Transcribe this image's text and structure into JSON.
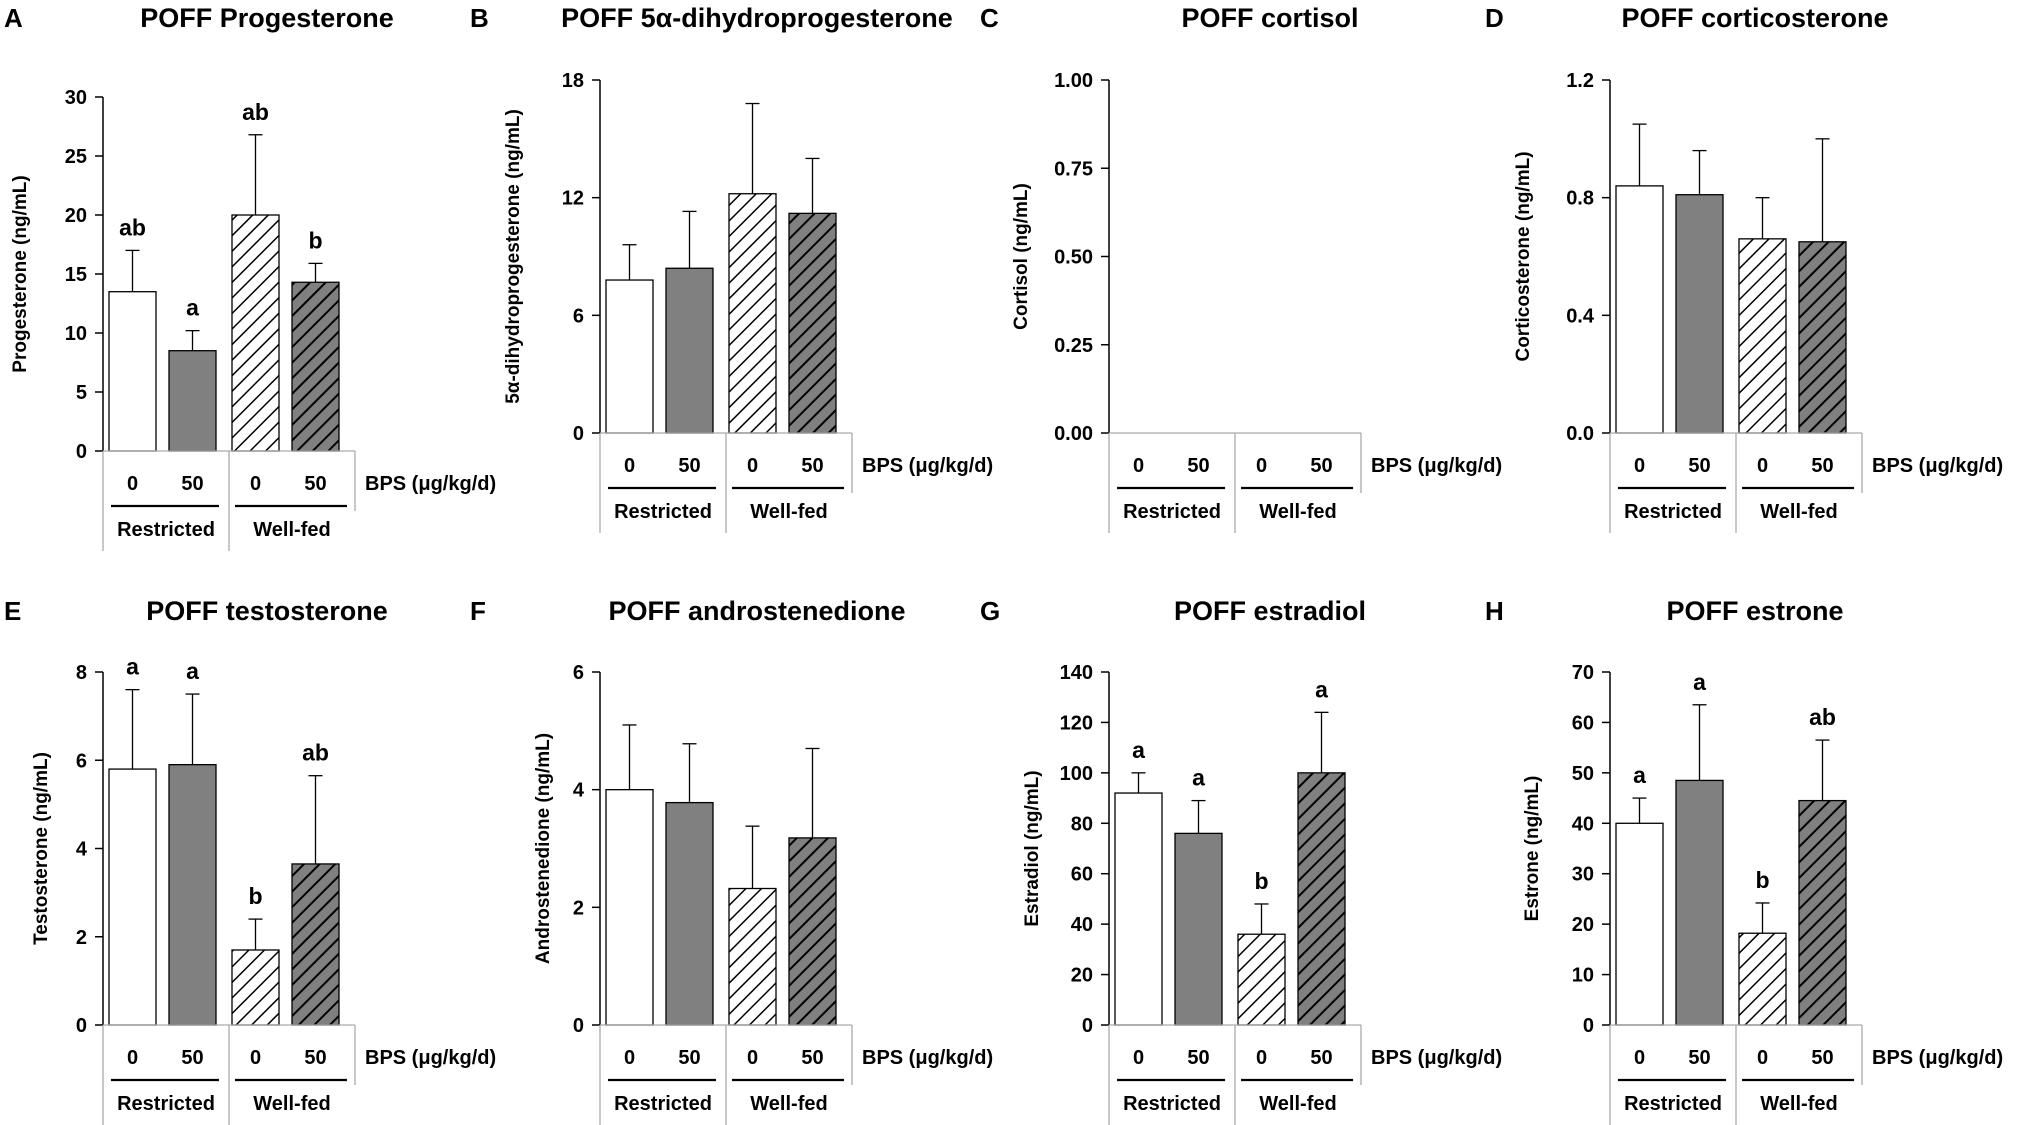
{
  "chart_data": [
    {
      "panel": "A",
      "type": "bar",
      "title": "POFF Progesterone",
      "ylabel": "Progesterone (ng/mL)",
      "ylim": [
        0,
        30
      ],
      "yticks": [
        "0",
        "5",
        "10",
        "15",
        "20",
        "25",
        "30"
      ],
      "dose_labels": [
        "0",
        "50",
        "0",
        "50"
      ],
      "dose_axis_label": "BPS (μg/kg/d)",
      "diet_labels": [
        "Restricted",
        "Well-fed"
      ],
      "categories": [
        "Restricted 0",
        "Restricted 50",
        "Well-fed 0",
        "Well-fed 50"
      ],
      "values": [
        13.5,
        8.5,
        20.0,
        14.3
      ],
      "error": [
        3.5,
        1.7,
        6.8,
        1.6
      ],
      "significance": [
        "ab",
        "a",
        "ab",
        "b"
      ]
    },
    {
      "panel": "B",
      "type": "bar",
      "title": "POFF 5α-dihydroprogesterone",
      "ylabel": "5α-dihydroprogesterone (ng/mL)",
      "ylim": [
        0,
        18
      ],
      "yticks": [
        "0",
        "6",
        "12",
        "18"
      ],
      "dose_labels": [
        "0",
        "50",
        "0",
        "50"
      ],
      "dose_axis_label": "BPS (μg/kg/d)",
      "diet_labels": [
        "Restricted",
        "Well-fed"
      ],
      "categories": [
        "Restricted 0",
        "Restricted 50",
        "Well-fed 0",
        "Well-fed 50"
      ],
      "values": [
        7.8,
        8.4,
        12.2,
        11.2
      ],
      "error": [
        1.8,
        2.9,
        4.6,
        2.8
      ],
      "significance": [
        "",
        "",
        "",
        ""
      ]
    },
    {
      "panel": "C",
      "type": "bar",
      "title": "POFF cortisol",
      "ylabel": "Cortisol (ng/mL)",
      "ylim": [
        0,
        1
      ],
      "yticks": [
        "0.00",
        "0.25",
        "0.50",
        "0.75",
        "1.00"
      ],
      "dose_labels": [
        "0",
        "50",
        "0",
        "50"
      ],
      "dose_axis_label": "BPS (μg/kg/d)",
      "diet_labels": [
        "Restricted",
        "Well-fed"
      ],
      "categories": [
        "Restricted 0",
        "Restricted 50",
        "Well-fed 0",
        "Well-fed 50"
      ],
      "values": [
        0,
        0,
        0,
        0
      ],
      "error": [
        0,
        0,
        0,
        0
      ],
      "significance": [
        "",
        "",
        "",
        ""
      ]
    },
    {
      "panel": "D",
      "type": "bar",
      "title": "POFF corticosterone",
      "ylabel": "Corticosterone (ng/mL)",
      "ylim": [
        0,
        1.2
      ],
      "yticks": [
        "0.0",
        "0.4",
        "0.8",
        "1.2"
      ],
      "dose_labels": [
        "0",
        "50",
        "0",
        "50"
      ],
      "dose_axis_label": "BPS (μg/kg/d)",
      "diet_labels": [
        "Restricted",
        "Well-fed"
      ],
      "categories": [
        "Restricted 0",
        "Restricted 50",
        "Well-fed 0",
        "Well-fed 50"
      ],
      "values": [
        0.84,
        0.81,
        0.66,
        0.65
      ],
      "error": [
        0.21,
        0.15,
        0.14,
        0.35
      ],
      "significance": [
        "",
        "",
        "",
        ""
      ]
    },
    {
      "panel": "E",
      "type": "bar",
      "title": "POFF testosterone",
      "ylabel": "Testosterone (ng/mL)",
      "ylim": [
        0,
        8
      ],
      "yticks": [
        "0",
        "2",
        "4",
        "6",
        "8"
      ],
      "dose_labels": [
        "0",
        "50",
        "0",
        "50"
      ],
      "dose_axis_label": "BPS (μg/kg/d)",
      "diet_labels": [
        "Restricted",
        "Well-fed"
      ],
      "categories": [
        "Restricted 0",
        "Restricted 50",
        "Well-fed 0",
        "Well-fed 50"
      ],
      "values": [
        5.8,
        5.9,
        1.7,
        3.65
      ],
      "error": [
        1.8,
        1.6,
        0.7,
        2.0
      ],
      "significance": [
        "a",
        "a",
        "b",
        "ab"
      ]
    },
    {
      "panel": "F",
      "type": "bar",
      "title": "POFF androstenedione",
      "ylabel": "Androstenedione (ng/mL)",
      "ylim": [
        0,
        6
      ],
      "yticks": [
        "0",
        "2",
        "4",
        "6"
      ],
      "dose_labels": [
        "0",
        "50",
        "0",
        "50"
      ],
      "dose_axis_label": "BPS (μg/kg/d)",
      "diet_labels": [
        "Restricted",
        "Well-fed"
      ],
      "categories": [
        "Restricted 0",
        "Restricted 50",
        "Well-fed 0",
        "Well-fed 50"
      ],
      "values": [
        4.0,
        3.78,
        2.32,
        3.18
      ],
      "error": [
        1.1,
        1.0,
        1.06,
        1.52
      ],
      "significance": [
        "",
        "",
        "",
        ""
      ]
    },
    {
      "panel": "G",
      "type": "bar",
      "title": "POFF estradiol",
      "ylabel": "Estradiol (ng/mL)",
      "ylim": [
        0,
        140
      ],
      "yticks": [
        "0",
        "20",
        "40",
        "60",
        "80",
        "100",
        "120",
        "140"
      ],
      "dose_labels": [
        "0",
        "50",
        "0",
        "50"
      ],
      "dose_axis_label": "BPS (μg/kg/d)",
      "diet_labels": [
        "Restricted",
        "Well-fed"
      ],
      "categories": [
        "Restricted 0",
        "Restricted 50",
        "Well-fed 0",
        "Well-fed 50"
      ],
      "values": [
        92,
        76,
        36,
        100
      ],
      "error": [
        8,
        13,
        12,
        24
      ],
      "significance": [
        "a",
        "a",
        "b",
        "a"
      ]
    },
    {
      "panel": "H",
      "type": "bar",
      "title": "POFF estrone",
      "ylabel": "Estrone (ng/mL)",
      "ylim": [
        0,
        70
      ],
      "yticks": [
        "0",
        "10",
        "20",
        "30",
        "40",
        "50",
        "60",
        "70"
      ],
      "dose_labels": [
        "0",
        "50",
        "0",
        "50"
      ],
      "dose_axis_label": "BPS (μg/kg/d)",
      "diet_labels": [
        "Restricted",
        "Well-fed"
      ],
      "categories": [
        "Restricted 0",
        "Restricted 50",
        "Well-fed 0",
        "Well-fed 50"
      ],
      "values": [
        40,
        48.5,
        18.2,
        44.5
      ],
      "error": [
        5,
        15,
        6,
        12
      ],
      "significance": [
        "a",
        "a",
        "b",
        "ab"
      ]
    }
  ],
  "colors": {
    "restricted_fill": "#ffffff",
    "bps_fill": "#808080",
    "hatch_stroke": "#000000",
    "axis": "#000000",
    "table_line": "#aaaaaa"
  }
}
